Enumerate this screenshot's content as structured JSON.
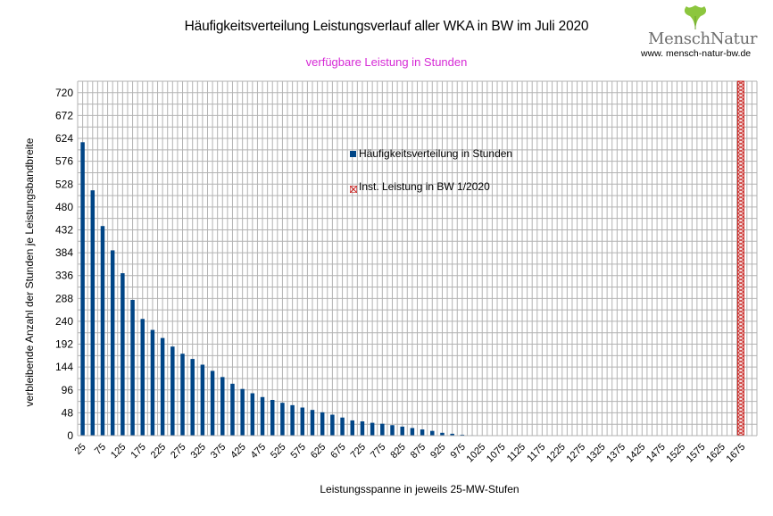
{
  "header": {
    "title": "Häufigkeitsverteilung Leistungsverlauf aller WKA in BW im Juli 2020",
    "subtitle": "verfügbare Leistung in Stunden"
  },
  "logo": {
    "brand": "MenschNatur",
    "url": "www. mensch-natur-bw.de"
  },
  "chart_data": {
    "type": "bar",
    "title": "Häufigkeitsverteilung Leistungsverlauf aller WKA in BW im Juli 2020",
    "subtitle": "verfügbare Leistung in Stunden",
    "xlabel": "Leistungsspanne in jeweils 25-MW-Stufen",
    "ylabel": "verbleibende Anzahl der Stunden je Leistungsbandbreite",
    "ylim": [
      0,
      744
    ],
    "yticks": [
      0,
      48,
      96,
      144,
      192,
      240,
      288,
      336,
      384,
      432,
      480,
      528,
      576,
      624,
      672,
      720
    ],
    "x_tick_labels": [
      "25",
      "75",
      "125",
      "175",
      "225",
      "275",
      "325",
      "375",
      "425",
      "475",
      "525",
      "575",
      "625",
      "675",
      "725",
      "775",
      "825",
      "875",
      "925",
      "975",
      "1025",
      "1075",
      "1125",
      "1175",
      "1225",
      "1275",
      "1325",
      "1375",
      "1425",
      "1475",
      "1525",
      "1575",
      "1625",
      "1675"
    ],
    "categories": [
      25,
      50,
      75,
      100,
      125,
      150,
      175,
      200,
      225,
      250,
      275,
      300,
      325,
      350,
      375,
      400,
      425,
      450,
      475,
      500,
      525,
      550,
      575,
      600,
      625,
      650,
      675,
      700,
      725,
      750,
      775,
      800,
      825,
      850,
      875,
      900,
      925,
      950,
      975,
      1000,
      1025
    ],
    "series": [
      {
        "name": "Häufigkeitsverteilung in Stunden",
        "color": "#004586",
        "values": [
          616,
          515,
          440,
          389,
          341,
          285,
          245,
          222,
          205,
          187,
          172,
          161,
          149,
          136,
          123,
          109,
          98,
          89,
          81,
          75,
          69,
          64,
          59,
          54,
          49,
          44,
          38,
          32,
          30,
          27,
          25,
          22,
          19,
          16,
          13,
          10,
          6,
          4,
          2,
          1,
          0
        ]
      },
      {
        "name": "Inst. Leistung in BW 1/2020",
        "color": "#c9211e",
        "x": 1672
      }
    ],
    "grid": true,
    "legend_position": "center"
  }
}
